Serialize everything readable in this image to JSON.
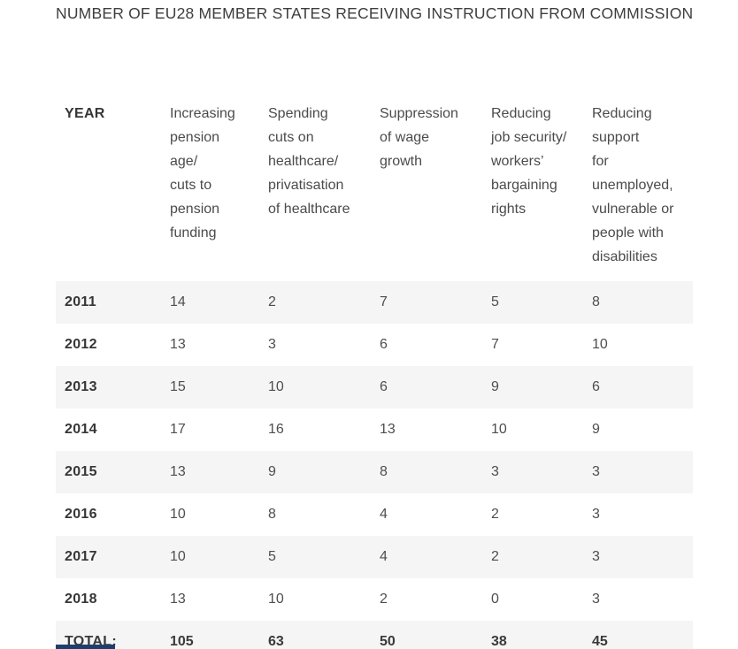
{
  "title": "NUMBER OF EU28 MEMBER STATES RECEIVING INSTRUCTION FROM COMMISSION",
  "table": {
    "columns": [
      {
        "label": "YEAR"
      },
      {
        "label": "Increasing\npension\nage/\ncuts to\npension\nfunding"
      },
      {
        "label": "Spending\ncuts on\nhealthcare/\nprivatisation\nof healthcare"
      },
      {
        "label": "Suppression\nof wage\ngrowth"
      },
      {
        "label": "Reducing\njob security/\nworkers’\nbargaining\nrights"
      },
      {
        "label": "Reducing\nsupport\nfor\nunemployed,\nvulnerable or\npeople with\ndisabilities"
      }
    ],
    "rows": [
      {
        "year": "2011",
        "values": [
          "14",
          "2",
          "7",
          "5",
          "8"
        ]
      },
      {
        "year": "2012",
        "values": [
          "13",
          "3",
          "6",
          "7",
          "10"
        ]
      },
      {
        "year": "2013",
        "values": [
          "15",
          "10",
          "6",
          "9",
          "6"
        ]
      },
      {
        "year": "2014",
        "values": [
          "17",
          "16",
          "13",
          "10",
          "9"
        ]
      },
      {
        "year": "2015",
        "values": [
          "13",
          "9",
          "8",
          "3",
          "3"
        ]
      },
      {
        "year": "2016",
        "values": [
          "10",
          "8",
          "4",
          "2",
          "3"
        ]
      },
      {
        "year": "2017",
        "values": [
          "10",
          "5",
          "4",
          "2",
          "3"
        ]
      },
      {
        "year": "2018",
        "values": [
          "13",
          "10",
          "2",
          "0",
          "3"
        ]
      }
    ],
    "total_row": {
      "label": "TOTAL:",
      "values": [
        "105",
        "63",
        "50",
        "38",
        "45"
      ]
    }
  },
  "colors": {
    "stripe": "#f5f5f5",
    "text": "#4e4e4e",
    "heading": "#3e3e3e",
    "accent_bar": "#1f3e6d"
  },
  "chart_data": {
    "type": "table",
    "title": "NUMBER OF EU28 MEMBER STATES RECEIVING INSTRUCTION FROM COMMISSION",
    "columns": [
      "YEAR",
      "Increasing pension age/ cuts to pension funding",
      "Spending cuts on healthcare/ privatisation of healthcare",
      "Suppression of wage growth",
      "Reducing job security/ workers’ bargaining rights",
      "Reducing support for unemployed, vulnerable or people with disabilities"
    ],
    "rows": [
      [
        "2011",
        14,
        2,
        7,
        5,
        8
      ],
      [
        "2012",
        13,
        3,
        6,
        7,
        10
      ],
      [
        "2013",
        15,
        10,
        6,
        9,
        6
      ],
      [
        "2014",
        17,
        16,
        13,
        10,
        9
      ],
      [
        "2015",
        13,
        9,
        8,
        3,
        3
      ],
      [
        "2016",
        10,
        8,
        4,
        2,
        3
      ],
      [
        "2017",
        10,
        5,
        4,
        2,
        3
      ],
      [
        "2018",
        13,
        10,
        2,
        0,
        3
      ]
    ],
    "totals": [
      "TOTAL:",
      105,
      63,
      50,
      38,
      45
    ]
  }
}
